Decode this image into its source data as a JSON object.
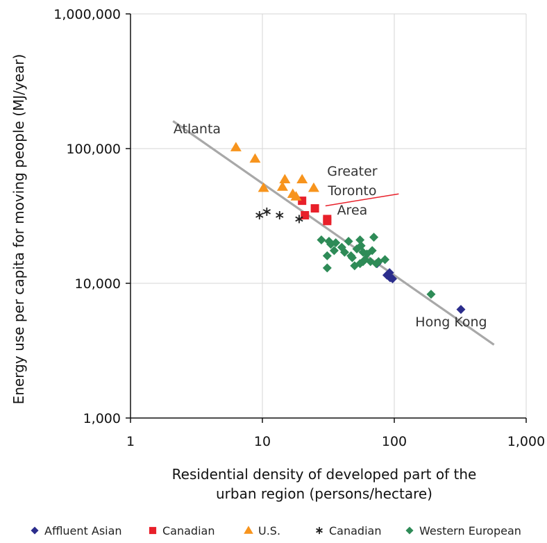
{
  "chart_data": {
    "type": "scatter",
    "xscale": "log",
    "yscale": "log",
    "xlim": [
      1,
      1000
    ],
    "ylim": [
      1000,
      1000000
    ],
    "grid": true,
    "xlabel_lines": [
      "Residential density of developed part of the",
      "urban region (persons/hectare)"
    ],
    "ylabel": "Energy use per capita for moving people (MJ/year)",
    "x_tick_labels": [
      "1",
      "10",
      "100",
      "1,000"
    ],
    "x_ticks": [
      1,
      10,
      100,
      1000
    ],
    "y_tick_labels": [
      "1,000",
      "10,000",
      "100,000",
      "1,000,000"
    ],
    "y_ticks": [
      1000,
      10000,
      100000,
      1000000
    ],
    "trendline": {
      "color": "#a8a8a8",
      "points": [
        [
          2.1,
          160000
        ],
        [
          570,
          3500
        ]
      ]
    },
    "annotations": [
      {
        "lines": [
          "Atlanta"
        ],
        "x": 3.2,
        "y": 130000
      },
      {
        "lines": [
          "Greater",
          "Toronto",
          "Area"
        ],
        "x": 48,
        "y": 63000
      },
      {
        "lines": [
          "Hong Kong"
        ],
        "x": 270,
        "y": 4800
      }
    ],
    "pointer": {
      "from": [
        40,
        40000
      ],
      "to": [
        26,
        35000
      ],
      "color": "#e8202a"
    },
    "series": [
      {
        "name": "Affluent Asian",
        "marker": "diamond",
        "color": "#2b2d8c",
        "points": [
          [
            74,
            14000
          ],
          [
            88,
            11500
          ],
          [
            93,
            11000
          ],
          [
            97,
            10800
          ],
          [
            92,
            12000
          ],
          [
            320,
            6400
          ]
        ]
      },
      {
        "name": "Canadian",
        "marker": "square",
        "color": "#e8202a",
        "points": [
          [
            20,
            41000
          ],
          [
            25,
            36000
          ],
          [
            21,
            32000
          ],
          [
            31,
            30000
          ],
          [
            31,
            29000
          ]
        ]
      },
      {
        "name": "U.S.",
        "marker": "triangle",
        "color": "#f7941d",
        "points": [
          [
            6.3,
            102000
          ],
          [
            8.8,
            84000
          ],
          [
            10.2,
            51000
          ],
          [
            14.2,
            52000
          ],
          [
            14.8,
            59000
          ],
          [
            17,
            46000
          ],
          [
            18,
            44000
          ],
          [
            20,
            59000
          ],
          [
            24.5,
            51000
          ]
        ]
      },
      {
        "name": "Canadian",
        "marker": "asterisk",
        "color": "#222222",
        "points": [
          [
            9.5,
            32000
          ],
          [
            10.8,
            34000
          ],
          [
            13.5,
            32000
          ],
          [
            19,
            30000
          ]
        ]
      },
      {
        "name": "Western European",
        "marker": "diamond",
        "color": "#2e8b57",
        "points": [
          [
            28,
            21000
          ],
          [
            33,
            19500
          ],
          [
            35,
            17500
          ],
          [
            36,
            20000
          ],
          [
            32,
            20500
          ],
          [
            40,
            18500
          ],
          [
            42,
            17000
          ],
          [
            45,
            20500
          ],
          [
            47,
            16000
          ],
          [
            48,
            15500
          ],
          [
            52,
            18000
          ],
          [
            55,
            21000
          ],
          [
            56,
            19000
          ],
          [
            58,
            17000
          ],
          [
            62,
            16500
          ],
          [
            66,
            14500
          ],
          [
            68,
            17500
          ],
          [
            70,
            22000
          ],
          [
            73,
            14000
          ],
          [
            76,
            14500
          ],
          [
            85,
            15000
          ],
          [
            55,
            14000
          ],
          [
            58,
            14500
          ],
          [
            50,
            13500
          ],
          [
            31,
            13000
          ],
          [
            31,
            16000
          ],
          [
            60,
            15000
          ],
          [
            190,
            8300
          ]
        ]
      }
    ],
    "legend": {
      "placement": "bottom",
      "entries": [
        {
          "label": "Affluent Asian",
          "marker": "diamond",
          "color": "#2b2d8c"
        },
        {
          "label": "Canadian",
          "marker": "square",
          "color": "#e8202a"
        },
        {
          "label": "U.S.",
          "marker": "triangle",
          "color": "#f7941d"
        },
        {
          "label": "Canadian",
          "marker": "asterisk",
          "color": "#222222"
        },
        {
          "label": "Western European",
          "marker": "diamond",
          "color": "#2e8b57"
        }
      ]
    }
  }
}
